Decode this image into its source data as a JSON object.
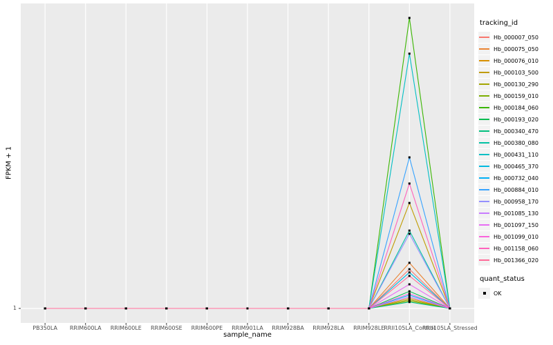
{
  "figure": {
    "background": "#FFFFFF",
    "panel_background": "#EBEBEB",
    "gridline_color": "#FFFFFF",
    "axis_text_color": "#4D4D4D",
    "tick_mark_color": "#333333",
    "legend_key_background": "#F2F2F2"
  },
  "axes": {
    "x_title": "sample_name",
    "y_title": "FPKM + 1",
    "y_tick_labels": [
      "1"
    ]
  },
  "legend": {
    "tracking_title": "tracking_id",
    "quant_title": "quant_status",
    "quant_items": [
      {
        "label": "OK",
        "shape": "square",
        "color": "#000000"
      }
    ]
  },
  "chart_data": {
    "type": "line",
    "title": "",
    "xlabel": "sample_name",
    "ylabel": "FPKM + 1",
    "categories": [
      "PB350LA",
      "RRIM600LA",
      "RRIM600LE",
      "RRIM600SE",
      "RRIM600PE",
      "RRIM901LA",
      "RRIM928BA",
      "RRIM928LA",
      "RRIM928LE",
      "RRII105LA_Control",
      "RRII105LA_Stressed"
    ],
    "y_axis": {
      "labeled_ticks": [
        1
      ],
      "scale_note": "Only the value 1 is labeled on the y axis. Every series is flat at FPKM+1 = 1 for all samples except a single peak at RRII105LA_Control; peak_height_fraction gives each peak's height as a fraction of the tallest peak."
    },
    "baseline_value": 1,
    "peak_category": "RRII105LA_Control",
    "marker": {
      "shape": "square",
      "color": "#000000",
      "status_legend": "quant_status",
      "status_value": "OK"
    },
    "legend_position": "right",
    "grid": "major-only",
    "series": [
      {
        "name": "Hb_000007_050",
        "color": "#F8766D",
        "peak_height_fraction": 0.135
      },
      {
        "name": "Hb_000075_050",
        "color": "#EA8331",
        "peak_height_fraction": 0.157
      },
      {
        "name": "Hb_000076_010",
        "color": "#D89000",
        "peak_height_fraction": 0.035
      },
      {
        "name": "Hb_000103_500",
        "color": "#C09B00",
        "peak_height_fraction": 0.363
      },
      {
        "name": "Hb_000130_290",
        "color": "#A3A500",
        "peak_height_fraction": 0.03
      },
      {
        "name": "Hb_000159_010",
        "color": "#7CAE00",
        "peak_height_fraction": 0.026
      },
      {
        "name": "Hb_000184_060",
        "color": "#39B600",
        "peak_height_fraction": 1.0
      },
      {
        "name": "Hb_000193_020",
        "color": "#00BB4E",
        "peak_height_fraction": 0.059
      },
      {
        "name": "Hb_000340_470",
        "color": "#00BF7D",
        "peak_height_fraction": 0.022
      },
      {
        "name": "Hb_000380_080",
        "color": "#00C1A3",
        "peak_height_fraction": 0.268
      },
      {
        "name": "Hb_000431_110",
        "color": "#00BFC4",
        "peak_height_fraction": 0.877
      },
      {
        "name": "Hb_000465_370",
        "color": "#00BAE0",
        "peak_height_fraction": 0.124
      },
      {
        "name": "Hb_000732_040",
        "color": "#00B0F6",
        "peak_height_fraction": 0.046
      },
      {
        "name": "Hb_000884_010",
        "color": "#35A2FF",
        "peak_height_fraction": 0.52
      },
      {
        "name": "Hb_000958_170",
        "color": "#9590FF",
        "peak_height_fraction": 0.257
      },
      {
        "name": "Hb_001085_130",
        "color": "#C77CFF",
        "peak_height_fraction": 0.04
      },
      {
        "name": "Hb_001097_150",
        "color": "#E76BF3",
        "peak_height_fraction": 0.083
      },
      {
        "name": "Hb_001099_010",
        "color": "#FA62DB",
        "peak_height_fraction": 0.051
      },
      {
        "name": "Hb_001158_060",
        "color": "#FF62BC",
        "peak_height_fraction": 0.43
      },
      {
        "name": "Hb_001366_020",
        "color": "#FF6A98",
        "peak_height_fraction": 0.112
      }
    ]
  }
}
